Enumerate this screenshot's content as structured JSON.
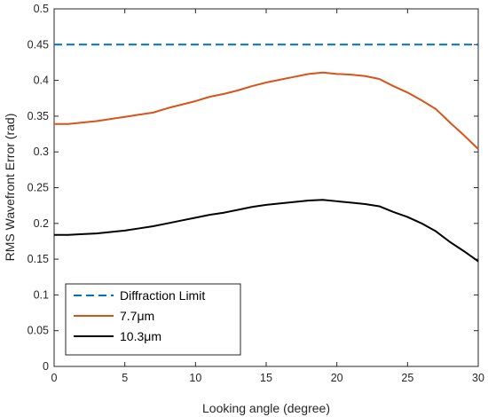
{
  "chart_data": {
    "type": "line",
    "xlabel": "Looking angle (degree)",
    "ylabel": "RMS Wavefront Error (rad)",
    "xlim": [
      0,
      30
    ],
    "ylim": [
      0,
      0.5
    ],
    "xticks": [
      0,
      5,
      10,
      15,
      20,
      25,
      30
    ],
    "yticks": [
      0,
      0.05,
      0.1,
      0.15,
      0.2,
      0.25,
      0.3,
      0.35,
      0.4,
      0.45,
      0.5
    ],
    "xtick_labels": [
      "0",
      "5",
      "10",
      "15",
      "20",
      "25",
      "30"
    ],
    "ytick_labels": [
      "0",
      "0.05",
      "0.1",
      "0.15",
      "0.2",
      "0.25",
      "0.3",
      "0.35",
      "0.4",
      "0.45",
      "0.5"
    ],
    "grid": false,
    "legend_position": "bottom-left",
    "series": [
      {
        "name": "Diffraction Limit",
        "color": "#0072BD",
        "style": "dashed",
        "x": [
          0,
          30
        ],
        "y": [
          0.45,
          0.45
        ]
      },
      {
        "name": "7.7μm",
        "color": "#D95319",
        "style": "solid",
        "x": [
          0,
          1,
          2,
          3,
          4,
          5,
          6,
          7,
          8,
          9,
          10,
          11,
          12,
          13,
          14,
          15,
          16,
          17,
          18,
          19,
          20,
          21,
          22,
          23,
          24,
          25,
          26,
          27,
          28,
          29,
          30
        ],
        "y": [
          0.339,
          0.339,
          0.341,
          0.343,
          0.346,
          0.349,
          0.352,
          0.355,
          0.361,
          0.366,
          0.371,
          0.377,
          0.381,
          0.386,
          0.392,
          0.397,
          0.401,
          0.405,
          0.409,
          0.411,
          0.409,
          0.408,
          0.406,
          0.402,
          0.392,
          0.383,
          0.372,
          0.36,
          0.341,
          0.323,
          0.304
        ]
      },
      {
        "name": "10.3μm",
        "color": "#000000",
        "style": "solid",
        "x": [
          0,
          1,
          2,
          3,
          4,
          5,
          6,
          7,
          8,
          9,
          10,
          11,
          12,
          13,
          14,
          15,
          16,
          17,
          18,
          19,
          20,
          21,
          22,
          23,
          24,
          25,
          26,
          27,
          28,
          29,
          30
        ],
        "y": [
          0.184,
          0.184,
          0.185,
          0.186,
          0.188,
          0.19,
          0.193,
          0.196,
          0.2,
          0.204,
          0.208,
          0.212,
          0.215,
          0.219,
          0.223,
          0.226,
          0.228,
          0.23,
          0.232,
          0.233,
          0.231,
          0.229,
          0.227,
          0.224,
          0.216,
          0.209,
          0.2,
          0.189,
          0.174,
          0.161,
          0.147
        ]
      }
    ]
  }
}
